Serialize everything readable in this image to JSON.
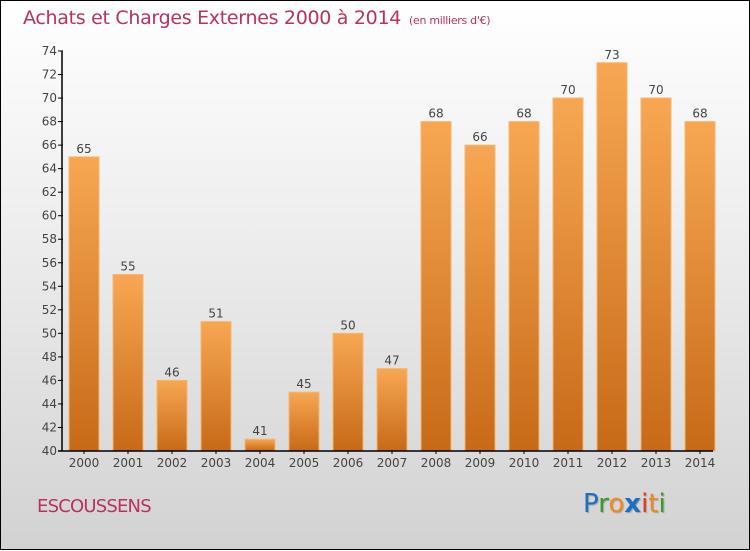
{
  "chart_data": {
    "type": "bar",
    "title": "Achats et Charges Externes 2000 à 2014",
    "subtitle": "(en milliers d'€)",
    "xlabel": "",
    "ylabel": "",
    "categories": [
      "2000",
      "2001",
      "2002",
      "2003",
      "2004",
      "2005",
      "2006",
      "2007",
      "2008",
      "2009",
      "2010",
      "2011",
      "2012",
      "2013",
      "2014"
    ],
    "values": [
      65,
      55,
      46,
      51,
      41,
      45,
      50,
      47,
      68,
      66,
      68,
      70,
      73,
      70,
      68
    ],
    "ylim": [
      40,
      74
    ],
    "yticks": [
      40,
      42,
      44,
      46,
      48,
      50,
      52,
      54,
      56,
      58,
      60,
      62,
      64,
      66,
      68,
      70,
      72,
      74
    ],
    "grid": false,
    "legend": "none",
    "bar_color_top": "#f7a752",
    "bar_color_bottom": "#c76a18"
  },
  "header": {
    "title": "Achats et Charges Externes 2000 à 2014",
    "subtitle": "(en milliers d'€)"
  },
  "footer": {
    "commune": "ESCOUSSENS",
    "logo_letters": [
      {
        "ch": "P",
        "color": "#1f6fc0"
      },
      {
        "ch": "r",
        "color": "#3a9a2c"
      },
      {
        "ch": "o",
        "color": "#f08a1c"
      },
      {
        "ch": "x",
        "color": "#1f6fc0"
      },
      {
        "ch": "i",
        "color": "#e23a1c"
      },
      {
        "ch": "t",
        "color": "#f08a1c"
      },
      {
        "ch": "i",
        "color": "#3a9a2c"
      }
    ]
  },
  "colors": {
    "title": "#b8325e",
    "axis": "#000000",
    "text": "#444444"
  }
}
